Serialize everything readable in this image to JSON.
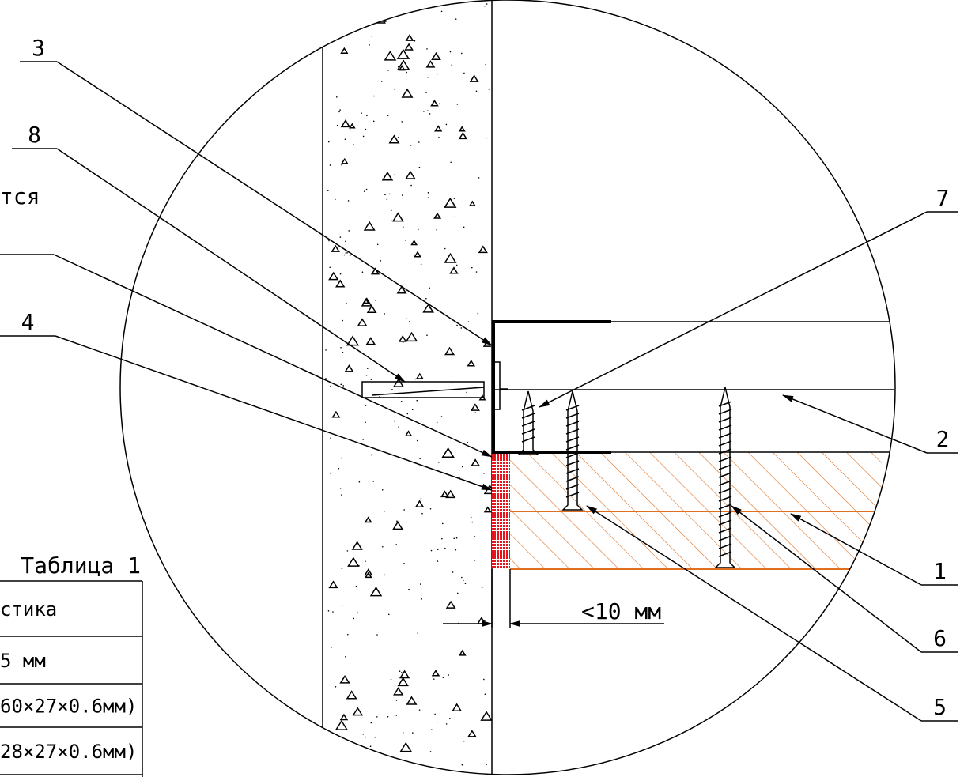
{
  "callouts": {
    "c3": "3",
    "c8": "8",
    "c4": "4",
    "c7": "7",
    "c2": "2",
    "c1": "1",
    "c6": "6",
    "c5": "5"
  },
  "note_fragment": "тся",
  "dimension": "<10 мм",
  "table": {
    "title": "Таблица 1",
    "rows": [
      [
        "стика"
      ],
      [
        "5 мм"
      ],
      [
        "60×27×0.6мм)"
      ],
      [
        "28×27×0.6мм)"
      ]
    ]
  }
}
